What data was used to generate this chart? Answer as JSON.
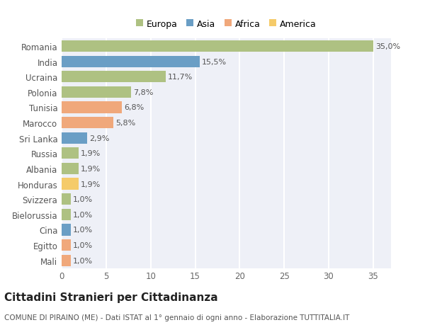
{
  "countries": [
    "Romania",
    "India",
    "Ucraina",
    "Polonia",
    "Tunisia",
    "Marocco",
    "Sri Lanka",
    "Russia",
    "Albania",
    "Honduras",
    "Svizzera",
    "Bielorussia",
    "Cina",
    "Egitto",
    "Mali"
  ],
  "values": [
    35.0,
    15.5,
    11.7,
    7.8,
    6.8,
    5.8,
    2.9,
    1.9,
    1.9,
    1.9,
    1.0,
    1.0,
    1.0,
    1.0,
    1.0
  ],
  "labels": [
    "35,0%",
    "15,5%",
    "11,7%",
    "7,8%",
    "6,8%",
    "5,8%",
    "2,9%",
    "1,9%",
    "1,9%",
    "1,9%",
    "1,0%",
    "1,0%",
    "1,0%",
    "1,0%",
    "1,0%"
  ],
  "colors": [
    "#aec182",
    "#6a9ec5",
    "#aec182",
    "#aec182",
    "#f0a87b",
    "#f0a87b",
    "#6a9ec5",
    "#aec182",
    "#aec182",
    "#f5cb6a",
    "#aec182",
    "#aec182",
    "#6a9ec5",
    "#f0a87b",
    "#f0a87b"
  ],
  "legend": {
    "Europa": "#aec182",
    "Asia": "#6a9ec5",
    "Africa": "#f0a87b",
    "America": "#f5cb6a"
  },
  "title": "Cittadini Stranieri per Cittadinanza",
  "subtitle": "COMUNE DI PIRAINO (ME) - Dati ISTAT al 1° gennaio di ogni anno - Elaborazione TUTTITALIA.IT",
  "xlim": [
    0,
    37
  ],
  "background_color": "#ffffff",
  "plot_bg_color": "#eef0f7",
  "grid_color": "#ffffff",
  "bar_height": 0.75,
  "label_fontsize": 8,
  "ytick_fontsize": 8.5,
  "xtick_fontsize": 8.5,
  "title_fontsize": 11,
  "subtitle_fontsize": 7.5
}
